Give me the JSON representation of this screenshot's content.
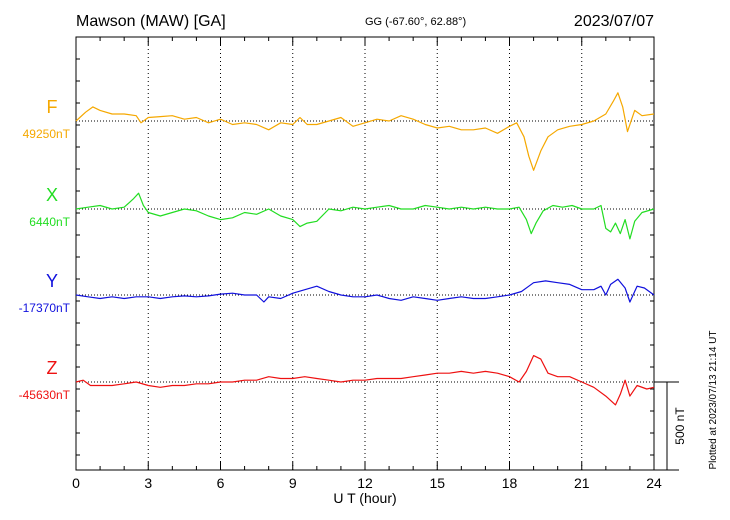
{
  "header": {
    "station": "Mawson (MAW)  [GA]",
    "coords": "GG (-67.60°,  62.88°)",
    "date": "2023/07/07"
  },
  "plotted_at": "Plotted at 2023/07/13 21:14 UT",
  "chart_data": {
    "type": "line",
    "xlabel": "U T (hour)",
    "xlim": [
      0,
      24
    ],
    "xticks": [
      "0",
      "3",
      "6",
      "9",
      "12",
      "15",
      "18",
      "21",
      "24"
    ],
    "grid": true,
    "scale_bar": {
      "label": "500 nT",
      "value": 500
    },
    "series": [
      {
        "name": "F",
        "baseline_label": "49250nT",
        "baseline": 49250,
        "color": "#f5a800",
        "points": [
          [
            0,
            49250
          ],
          [
            0.4,
            49300
          ],
          [
            0.7,
            49330
          ],
          [
            1,
            49310
          ],
          [
            1.5,
            49290
          ],
          [
            2,
            49290
          ],
          [
            2.5,
            49280
          ],
          [
            2.7,
            49240
          ],
          [
            3,
            49270
          ],
          [
            3.5,
            49275
          ],
          [
            4,
            49280
          ],
          [
            4.5,
            49260
          ],
          [
            5,
            49270
          ],
          [
            5.5,
            49240
          ],
          [
            6,
            49260
          ],
          [
            6.5,
            49230
          ],
          [
            7,
            49240
          ],
          [
            7.5,
            49230
          ],
          [
            8,
            49200
          ],
          [
            8.5,
            49240
          ],
          [
            9,
            49230
          ],
          [
            9.3,
            49270
          ],
          [
            9.6,
            49230
          ],
          [
            10,
            49230
          ],
          [
            10.5,
            49250
          ],
          [
            11,
            49270
          ],
          [
            11.5,
            49220
          ],
          [
            12,
            49240
          ],
          [
            12.5,
            49260
          ],
          [
            13,
            49250
          ],
          [
            13.5,
            49280
          ],
          [
            14,
            49260
          ],
          [
            14.5,
            49230
          ],
          [
            15,
            49210
          ],
          [
            15.5,
            49220
          ],
          [
            16,
            49200
          ],
          [
            16.5,
            49200
          ],
          [
            17,
            49210
          ],
          [
            17.5,
            49180
          ],
          [
            18,
            49220
          ],
          [
            18.3,
            49240
          ],
          [
            18.6,
            49160
          ],
          [
            18.8,
            49050
          ],
          [
            19,
            48970
          ],
          [
            19.3,
            49080
          ],
          [
            19.6,
            49160
          ],
          [
            20,
            49200
          ],
          [
            20.5,
            49220
          ],
          [
            21,
            49230
          ],
          [
            21.5,
            49250
          ],
          [
            22,
            49290
          ],
          [
            22.3,
            49360
          ],
          [
            22.5,
            49410
          ],
          [
            22.7,
            49330
          ],
          [
            22.9,
            49190
          ],
          [
            23.2,
            49310
          ],
          [
            23.5,
            49280
          ],
          [
            24,
            49290
          ]
        ]
      },
      {
        "name": "X",
        "baseline_label": "6440nT",
        "baseline": 6440,
        "color": "#22dd22",
        "points": [
          [
            0,
            6440
          ],
          [
            0.5,
            6450
          ],
          [
            1,
            6460
          ],
          [
            1.5,
            6440
          ],
          [
            2,
            6450
          ],
          [
            2.4,
            6500
          ],
          [
            2.6,
            6530
          ],
          [
            2.8,
            6460
          ],
          [
            3,
            6420
          ],
          [
            3.5,
            6400
          ],
          [
            4,
            6420
          ],
          [
            4.5,
            6440
          ],
          [
            5,
            6430
          ],
          [
            5.5,
            6400
          ],
          [
            6,
            6380
          ],
          [
            6.5,
            6390
          ],
          [
            7,
            6420
          ],
          [
            7.5,
            6410
          ],
          [
            8,
            6440
          ],
          [
            8.5,
            6400
          ],
          [
            9,
            6380
          ],
          [
            9.3,
            6340
          ],
          [
            9.6,
            6360
          ],
          [
            10,
            6370
          ],
          [
            10.5,
            6440
          ],
          [
            11,
            6430
          ],
          [
            11.5,
            6450
          ],
          [
            12,
            6440
          ],
          [
            12.5,
            6450
          ],
          [
            13,
            6460
          ],
          [
            13.5,
            6440
          ],
          [
            14,
            6440
          ],
          [
            14.5,
            6460
          ],
          [
            15,
            6450
          ],
          [
            15.5,
            6440
          ],
          [
            16,
            6450
          ],
          [
            16.5,
            6440
          ],
          [
            17,
            6450
          ],
          [
            17.5,
            6440
          ],
          [
            18,
            6440
          ],
          [
            18.4,
            6450
          ],
          [
            18.7,
            6380
          ],
          [
            18.9,
            6300
          ],
          [
            19.1,
            6360
          ],
          [
            19.4,
            6430
          ],
          [
            19.8,
            6460
          ],
          [
            20.2,
            6450
          ],
          [
            20.6,
            6460
          ],
          [
            21,
            6440
          ],
          [
            21.5,
            6440
          ],
          [
            21.8,
            6460
          ],
          [
            22,
            6330
          ],
          [
            22.2,
            6310
          ],
          [
            22.4,
            6360
          ],
          [
            22.6,
            6300
          ],
          [
            22.8,
            6380
          ],
          [
            23,
            6270
          ],
          [
            23.2,
            6370
          ],
          [
            23.5,
            6420
          ],
          [
            24,
            6440
          ]
        ]
      },
      {
        "name": "Y",
        "baseline_label": "-17370nT",
        "baseline": -17370,
        "color": "#1010dd",
        "points": [
          [
            0,
            -17370
          ],
          [
            0.5,
            -17380
          ],
          [
            1,
            -17390
          ],
          [
            1.5,
            -17380
          ],
          [
            2,
            -17390
          ],
          [
            2.5,
            -17380
          ],
          [
            3,
            -17380
          ],
          [
            3.5,
            -17390
          ],
          [
            4,
            -17380
          ],
          [
            4.5,
            -17375
          ],
          [
            5,
            -17380
          ],
          [
            5.5,
            -17375
          ],
          [
            6,
            -17365
          ],
          [
            6.5,
            -17360
          ],
          [
            7,
            -17370
          ],
          [
            7.5,
            -17370
          ],
          [
            7.8,
            -17410
          ],
          [
            8,
            -17380
          ],
          [
            8.5,
            -17390
          ],
          [
            9,
            -17360
          ],
          [
            9.5,
            -17340
          ],
          [
            10,
            -17320
          ],
          [
            10.5,
            -17350
          ],
          [
            11,
            -17370
          ],
          [
            11.5,
            -17380
          ],
          [
            12,
            -17380
          ],
          [
            12.5,
            -17370
          ],
          [
            13,
            -17390
          ],
          [
            13.5,
            -17400
          ],
          [
            14,
            -17380
          ],
          [
            14.5,
            -17390
          ],
          [
            15,
            -17400
          ],
          [
            15.5,
            -17390
          ],
          [
            16,
            -17380
          ],
          [
            16.5,
            -17390
          ],
          [
            17,
            -17390
          ],
          [
            17.5,
            -17380
          ],
          [
            18,
            -17370
          ],
          [
            18.5,
            -17350
          ],
          [
            18.8,
            -17320
          ],
          [
            19,
            -17300
          ],
          [
            19.5,
            -17290
          ],
          [
            20,
            -17300
          ],
          [
            20.5,
            -17310
          ],
          [
            21,
            -17340
          ],
          [
            21.5,
            -17340
          ],
          [
            21.8,
            -17320
          ],
          [
            22,
            -17370
          ],
          [
            22.2,
            -17310
          ],
          [
            22.5,
            -17280
          ],
          [
            22.8,
            -17330
          ],
          [
            23,
            -17410
          ],
          [
            23.3,
            -17320
          ],
          [
            23.6,
            -17330
          ],
          [
            24,
            -17370
          ]
        ]
      },
      {
        "name": "Z",
        "baseline_label": "-45630nT",
        "baseline": -45630,
        "color": "#ee1111",
        "points": [
          [
            0,
            -45630
          ],
          [
            0.3,
            -45620
          ],
          [
            0.6,
            -45650
          ],
          [
            1,
            -45650
          ],
          [
            1.5,
            -45650
          ],
          [
            2,
            -45640
          ],
          [
            2.5,
            -45630
          ],
          [
            3,
            -45650
          ],
          [
            3.5,
            -45660
          ],
          [
            4,
            -45650
          ],
          [
            4.5,
            -45650
          ],
          [
            5,
            -45640
          ],
          [
            5.5,
            -45640
          ],
          [
            6,
            -45630
          ],
          [
            6.5,
            -45630
          ],
          [
            7,
            -45620
          ],
          [
            7.5,
            -45620
          ],
          [
            8,
            -45600
          ],
          [
            8.5,
            -45610
          ],
          [
            9,
            -45610
          ],
          [
            9.5,
            -45600
          ],
          [
            10,
            -45610
          ],
          [
            10.5,
            -45620
          ],
          [
            11,
            -45630
          ],
          [
            11.5,
            -45620
          ],
          [
            12,
            -45620
          ],
          [
            12.5,
            -45610
          ],
          [
            13,
            -45610
          ],
          [
            13.5,
            -45610
          ],
          [
            14,
            -45600
          ],
          [
            14.5,
            -45590
          ],
          [
            15,
            -45580
          ],
          [
            15.5,
            -45580
          ],
          [
            16,
            -45570
          ],
          [
            16.5,
            -45580
          ],
          [
            17,
            -45570
          ],
          [
            17.5,
            -45580
          ],
          [
            18,
            -45600
          ],
          [
            18.4,
            -45630
          ],
          [
            18.7,
            -45570
          ],
          [
            19,
            -45480
          ],
          [
            19.3,
            -45500
          ],
          [
            19.6,
            -45580
          ],
          [
            20,
            -45600
          ],
          [
            20.5,
            -45600
          ],
          [
            21,
            -45630
          ],
          [
            21.5,
            -45660
          ],
          [
            22,
            -45710
          ],
          [
            22.4,
            -45760
          ],
          [
            22.6,
            -45700
          ],
          [
            22.8,
            -45620
          ],
          [
            23,
            -45710
          ],
          [
            23.3,
            -45650
          ],
          [
            23.7,
            -45670
          ],
          [
            24,
            -45660
          ]
        ]
      }
    ]
  }
}
